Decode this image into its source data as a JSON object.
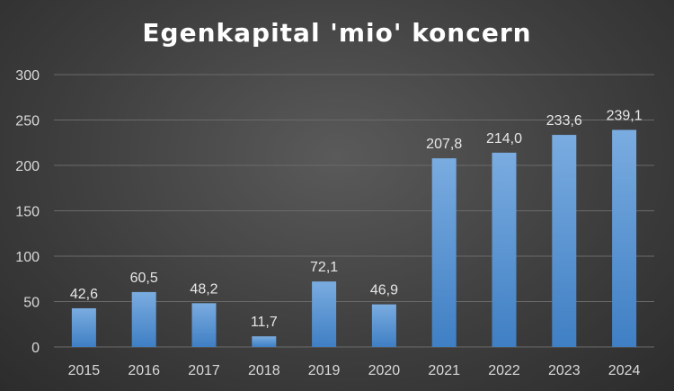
{
  "chart_data": {
    "type": "bar",
    "title": "Egenkapital 'mio' koncern",
    "categories": [
      "2015",
      "2016",
      "2017",
      "2018",
      "2019",
      "2020",
      "2021",
      "2022",
      "2023",
      "2024"
    ],
    "values": [
      42.6,
      60.5,
      48.2,
      11.7,
      72.1,
      46.9,
      207.8,
      214.0,
      233.6,
      239.1
    ],
    "data_labels": [
      "42,6",
      "60,5",
      "48,2",
      "11,7",
      "72,1",
      "46,9",
      "207,8",
      "214,0",
      "233,6",
      "239,1"
    ],
    "yticks": [
      "0",
      "50",
      "100",
      "150",
      "200",
      "250",
      "300"
    ],
    "ylim": [
      0,
      300
    ],
    "grid": true,
    "legend": "none",
    "colors": {
      "bar_top": "#7aace0",
      "bar_bottom": "#3f7fc4",
      "grid": "#6a6a6a",
      "background": "#404040"
    }
  }
}
